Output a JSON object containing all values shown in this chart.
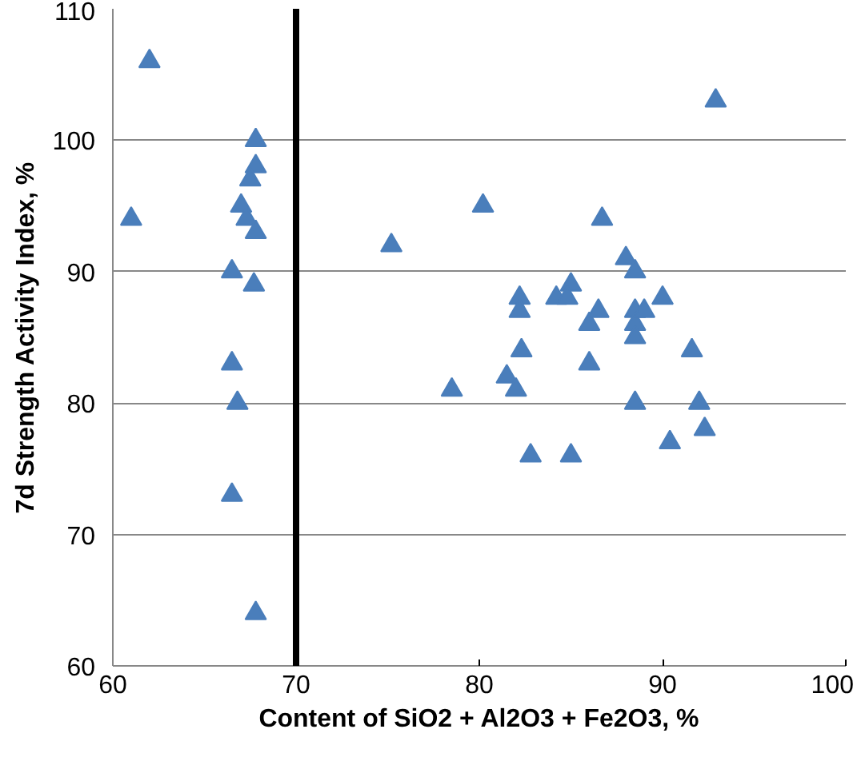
{
  "chart_data": {
    "type": "scatter",
    "xlabel": "Content of SiO2 + Al2O3 + Fe2O3, %",
    "ylabel": "7d Strength Activity Index, %",
    "xlim": [
      60,
      100
    ],
    "xticks": [
      60,
      70,
      80,
      90,
      100
    ],
    "ylim": [
      60,
      110
    ],
    "yticks": [
      60,
      70,
      80,
      90,
      100,
      110
    ],
    "grid": "y",
    "marker": "triangle",
    "ref_lines": [
      {
        "axis": "x",
        "value": 70,
        "color": "#000000"
      }
    ],
    "series": [
      {
        "color": "#4a7ebb",
        "x": [
          61,
          62,
          67.8,
          67.8,
          67.5,
          67,
          67.3,
          67.8,
          66.5,
          67.7,
          66.5,
          66.8,
          66.5,
          67.8,
          75.2,
          80.2,
          78.5,
          81.5,
          82,
          82.2,
          82.2,
          82.3,
          82.8,
          84.2,
          85,
          84.8,
          85,
          86,
          86,
          86.5,
          86.7,
          88,
          88.5,
          88.5,
          88.5,
          88.5,
          88.5,
          89,
          90,
          90.4,
          91.6,
          92,
          92.3,
          92.9
        ],
        "values": [
          94,
          106,
          100,
          98,
          97,
          95,
          94,
          93,
          90,
          89,
          83,
          80,
          73,
          64,
          92,
          95,
          81,
          82,
          81,
          88,
          87,
          84,
          76,
          88,
          89,
          88,
          76,
          86,
          83,
          87,
          94,
          91,
          90,
          87,
          86,
          85,
          80,
          87,
          88,
          77,
          84,
          80,
          78,
          103
        ]
      }
    ]
  }
}
